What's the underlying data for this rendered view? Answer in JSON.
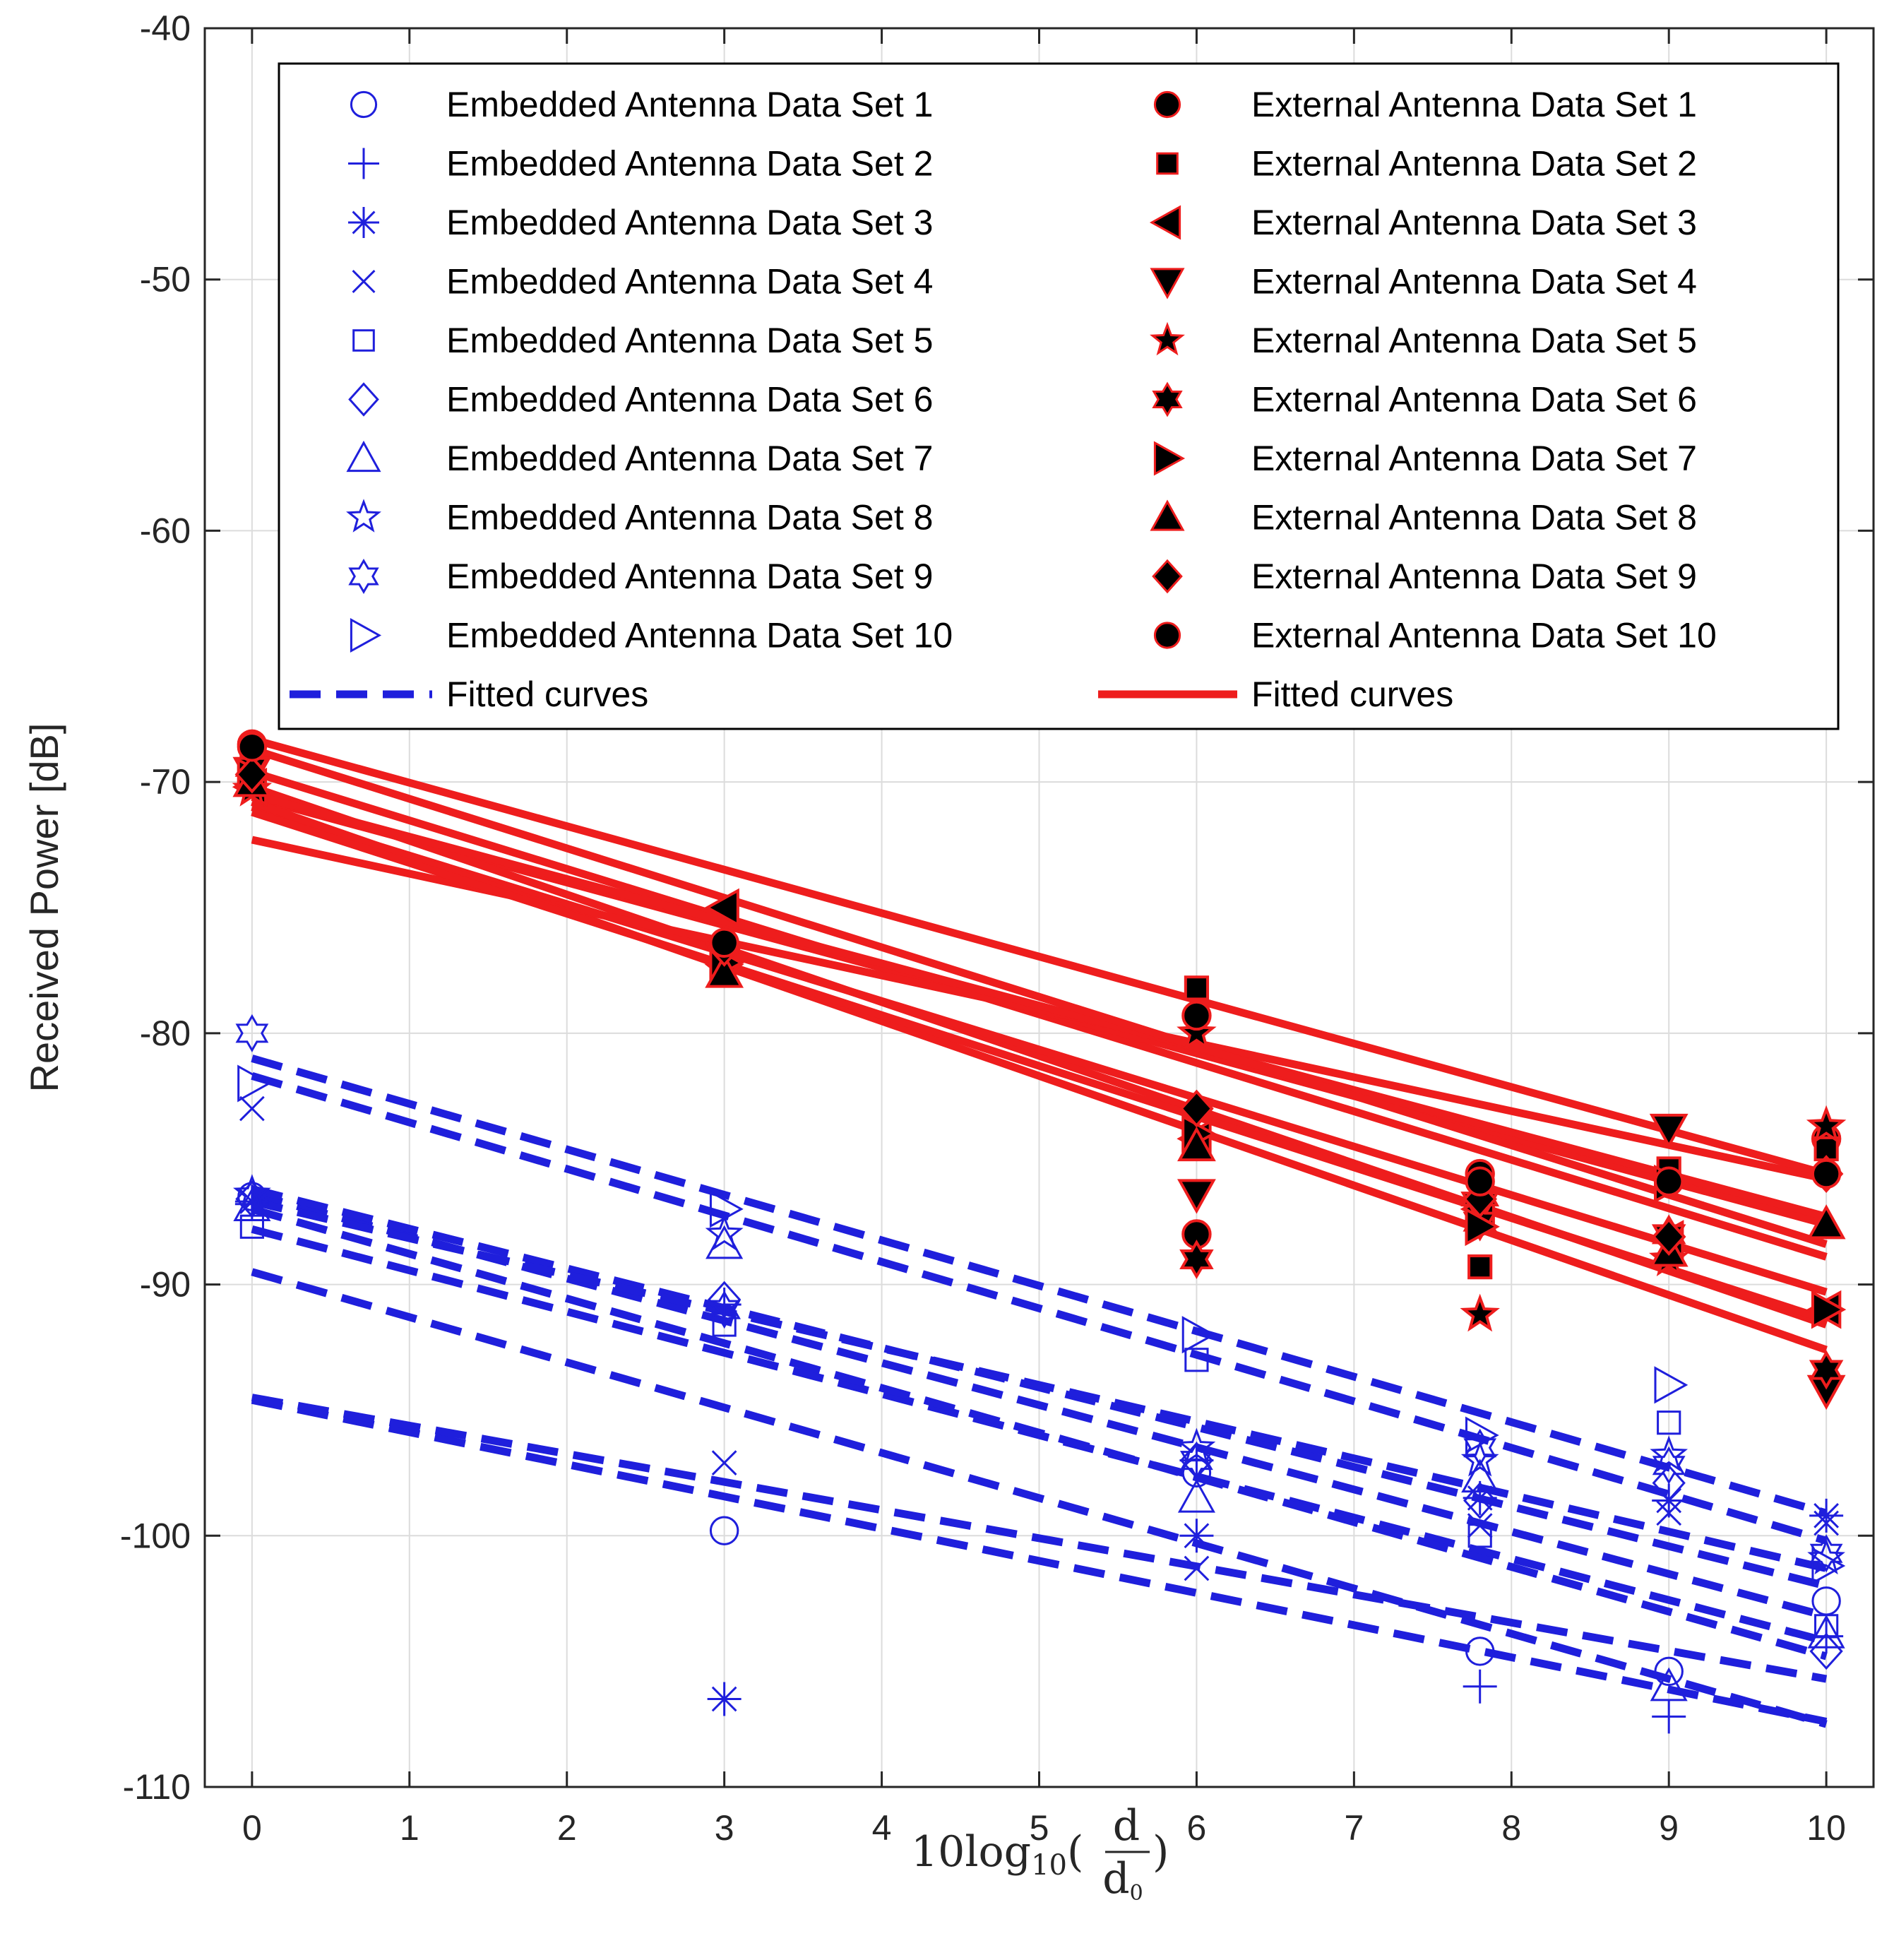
{
  "chart_data": {
    "type": "scatter",
    "title": "",
    "ylabel": "Received Power [dB]",
    "xlabel": {
      "base": "10log",
      "subscript": "10",
      "numerator": "d",
      "denominator": "d",
      "denominator_sub": "0"
    },
    "xlim": [
      -0.3,
      10.3
    ],
    "ylim": [
      -110,
      -40
    ],
    "xticks": [
      "0",
      "1",
      "2",
      "3",
      "4",
      "5",
      "6",
      "7",
      "8",
      "9",
      "10"
    ],
    "yticks": [
      "-40",
      "-50",
      "-60",
      "-70",
      "-80",
      "-90",
      "-100",
      "-110"
    ],
    "grid": true,
    "legend_position": "top",
    "x": [
      0,
      3,
      6,
      7.8,
      9,
      10
    ],
    "colors": {
      "embedded": "#1f1fdc",
      "external": "#ee1d1d",
      "external_marker": "#000000",
      "axis": "#262626",
      "grid": "#dcdcdc"
    },
    "embedded_series": [
      {
        "name": "Embedded Antenna Data Set 1",
        "marker": "circle",
        "values": [
          -86.5,
          -99.8,
          -97.5,
          -104.6,
          -105.4,
          -102.6
        ],
        "fit": [
          -86.4,
          -103.2
        ]
      },
      {
        "name": "Embedded Antenna Data Set 2",
        "marker": "plus",
        "values": [
          -86.8,
          -90.8,
          -97.0,
          -106.0,
          -107.2,
          -104.0
        ],
        "fit": [
          -89.5,
          -107.5
        ]
      },
      {
        "name": "Embedded Antenna Data Set 3",
        "marker": "asterisk",
        "values": [
          -86.7,
          -106.5,
          -100.0,
          -98.5,
          -98.6,
          -99.2
        ],
        "fit": [
          -94.6,
          -107.4
        ]
      },
      {
        "name": "Embedded Antenna Data Set 4",
        "marker": "x",
        "values": [
          -83.0,
          -97.1,
          -101.3,
          -99.6,
          -99.1,
          -99.5
        ],
        "fit": [
          -94.5,
          -105.7
        ]
      },
      {
        "name": "Embedded Antenna Data Set 5",
        "marker": "square",
        "values": [
          -87.7,
          -91.6,
          -93.0,
          -100.0,
          -95.5,
          -103.6
        ],
        "fit": [
          -86.2,
          -102.0
        ]
      },
      {
        "name": "Embedded Antenna Data Set 6",
        "marker": "diamond",
        "values": [
          -86.6,
          -90.6,
          -97.0,
          -98.6,
          -97.9,
          -104.6
        ],
        "fit": [
          -87.8,
          -104.2
        ]
      },
      {
        "name": "Embedded Antenna Data Set 7",
        "marker": "triangle-up",
        "values": [
          -86.9,
          -88.4,
          -98.5,
          -97.7,
          -106.0,
          -103.9
        ],
        "fit": [
          -87.0,
          -104.8
        ]
      },
      {
        "name": "Embedded Antenna Data Set 8",
        "marker": "pentagram",
        "values": [
          -86.4,
          -88.0,
          -96.5,
          -97.0,
          -96.8,
          -100.9
        ],
        "fit": [
          -86.7,
          -101.3
        ]
      },
      {
        "name": "Embedded Antenna Data Set 9",
        "marker": "hexagram",
        "values": [
          -80.0,
          -91.0,
          -97.0,
          -96.5,
          -97.2,
          -100.7
        ],
        "fit": [
          -81.0,
          -99.1
        ]
      },
      {
        "name": "Embedded Antenna Data Set 10",
        "marker": "triangle-right",
        "values": [
          -82.0,
          -87.0,
          -92.0,
          -96.0,
          -94.0,
          -101.2
        ],
        "fit": [
          -81.7,
          -100.2
        ]
      }
    ],
    "external_series": [
      {
        "name": "External Antenna Data Set 1",
        "marker": "circle",
        "values": [
          -68.5,
          -76.5,
          -88.0,
          -85.6,
          -85.9,
          -84.2
        ],
        "fit": [
          -69.6,
          -88.9
        ]
      },
      {
        "name": "External Antenna Data Set 2",
        "marker": "square",
        "values": [
          -69.0,
          -76.7,
          -78.2,
          -89.3,
          -85.4,
          -84.6
        ],
        "fit": [
          -70.6,
          -87.6
        ]
      },
      {
        "name": "External Antenna Data Set 3",
        "marker": "triangle-left",
        "values": [
          -70.2,
          -75.0,
          -84.2,
          -87.0,
          -88.2,
          -91.0
        ],
        "fit": [
          -70.2,
          -91.6
        ]
      },
      {
        "name": "External Antenna Data Set 4",
        "marker": "triangle-down",
        "values": [
          -69.6,
          -77.0,
          -86.4,
          -86.9,
          -83.8,
          -94.2
        ],
        "fit": [
          -71.0,
          -90.3
        ]
      },
      {
        "name": "External Antenna Data Set 5",
        "marker": "pentagram",
        "values": [
          -70.3,
          -77.5,
          -80.0,
          -91.2,
          -89.0,
          -83.7
        ],
        "fit": [
          -72.3,
          -85.8
        ]
      },
      {
        "name": "External Antenna Data Set 6",
        "marker": "hexagram",
        "values": [
          -69.4,
          -76.9,
          -89.0,
          -87.5,
          -88.0,
          -93.4
        ],
        "fit": [
          -70.8,
          -92.6
        ]
      },
      {
        "name": "External Antenna Data Set 7",
        "marker": "triangle-right",
        "values": [
          -69.8,
          -77.2,
          -84.0,
          -87.7,
          -86.0,
          -91.0
        ],
        "fit": [
          -71.2,
          -91.4
        ]
      },
      {
        "name": "External Antenna Data Set 8",
        "marker": "triangle-up",
        "values": [
          -70.0,
          -77.6,
          -84.5,
          -86.3,
          -88.7,
          -87.6
        ],
        "fit": [
          -70.5,
          -87.3
        ]
      },
      {
        "name": "External Antenna Data Set 9",
        "marker": "diamond",
        "values": [
          -69.7,
          -76.6,
          -83.0,
          -86.6,
          -88.1,
          -85.6
        ],
        "fit": [
          -68.3,
          -85.6
        ]
      },
      {
        "name": "External Antenna Data Set 10",
        "marker": "circle",
        "values": [
          -68.6,
          -76.4,
          -79.3,
          -85.9,
          -85.9,
          -85.6
        ],
        "fit": [
          -68.7,
          -88.4
        ]
      }
    ],
    "fit_legend": {
      "embedded": "Fitted curves",
      "external": "Fitted curves"
    }
  }
}
